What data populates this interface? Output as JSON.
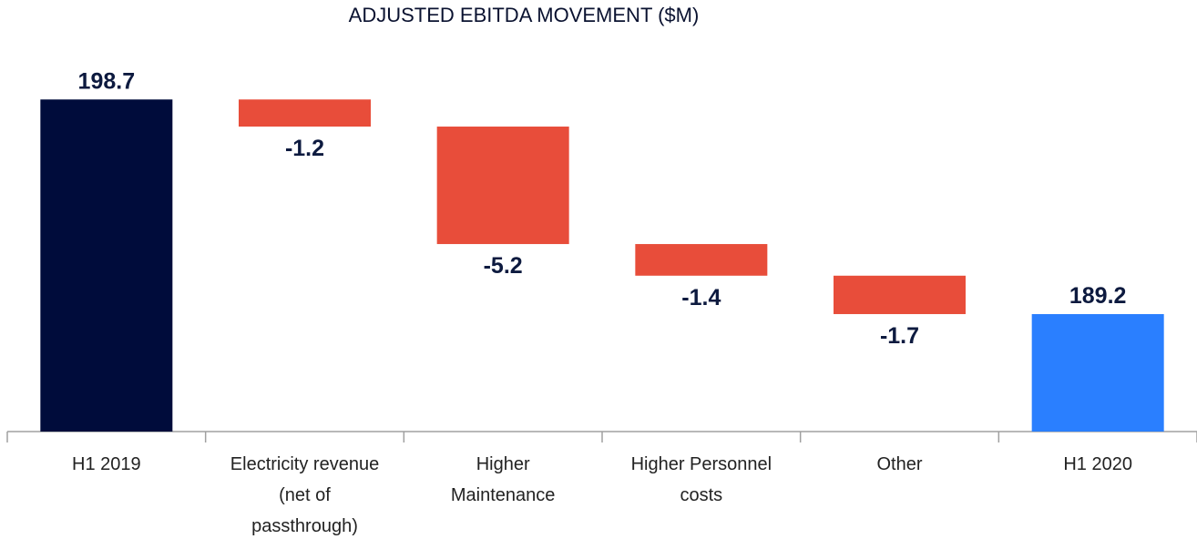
{
  "chart_data": {
    "type": "waterfall",
    "title": "ADJUSTED EBITDA MOVEMENT ($M)",
    "categories": [
      "H1 2019",
      "Electricity revenue\n(net of\npassthrough)",
      "Higher\nMaintenance",
      "Higher Personnel\ncosts",
      "Other",
      "H1 2020"
    ],
    "values": [
      198.7,
      -1.2,
      -5.2,
      -1.4,
      -1.7,
      189.2
    ],
    "colors": [
      "#000c3b",
      "#e84d3a",
      "#e84d3a",
      "#e84d3a",
      "#e84d3a",
      "#2a7fff"
    ],
    "ylim": [
      184,
      200
    ],
    "grid": false
  }
}
